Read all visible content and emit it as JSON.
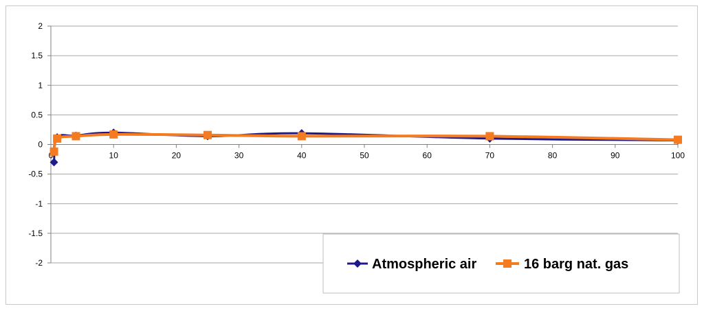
{
  "chart_data": {
    "type": "line",
    "title": "",
    "xlabel": "",
    "ylabel": "",
    "xlim": [
      0,
      100
    ],
    "ylim": [
      -2,
      2
    ],
    "xticks": [
      "0",
      "10",
      "20",
      "30",
      "40",
      "50",
      "60",
      "70",
      "80",
      "90",
      "100"
    ],
    "yticks": [
      "2",
      "1.5",
      "1",
      "0.5",
      "0",
      "-0.5",
      "-1",
      "-1.5",
      "-2"
    ],
    "grid": "horizontal",
    "legend_position": "bottom-right",
    "series": [
      {
        "name": "Atmospheric air",
        "color": "#1f1a8c",
        "marker": "diamond",
        "x": [
          0.5,
          1,
          4,
          10,
          25,
          40,
          70,
          100
        ],
        "y": [
          -0.3,
          0.12,
          0.15,
          0.2,
          0.14,
          0.19,
          0.1,
          0.07
        ]
      },
      {
        "name": "16 barg nat. gas",
        "color": "#f47b20",
        "marker": "square",
        "x": [
          0.5,
          1,
          4,
          10,
          25,
          40,
          70,
          100
        ],
        "y": [
          -0.12,
          0.1,
          0.14,
          0.17,
          0.16,
          0.14,
          0.14,
          0.08
        ]
      }
    ]
  }
}
